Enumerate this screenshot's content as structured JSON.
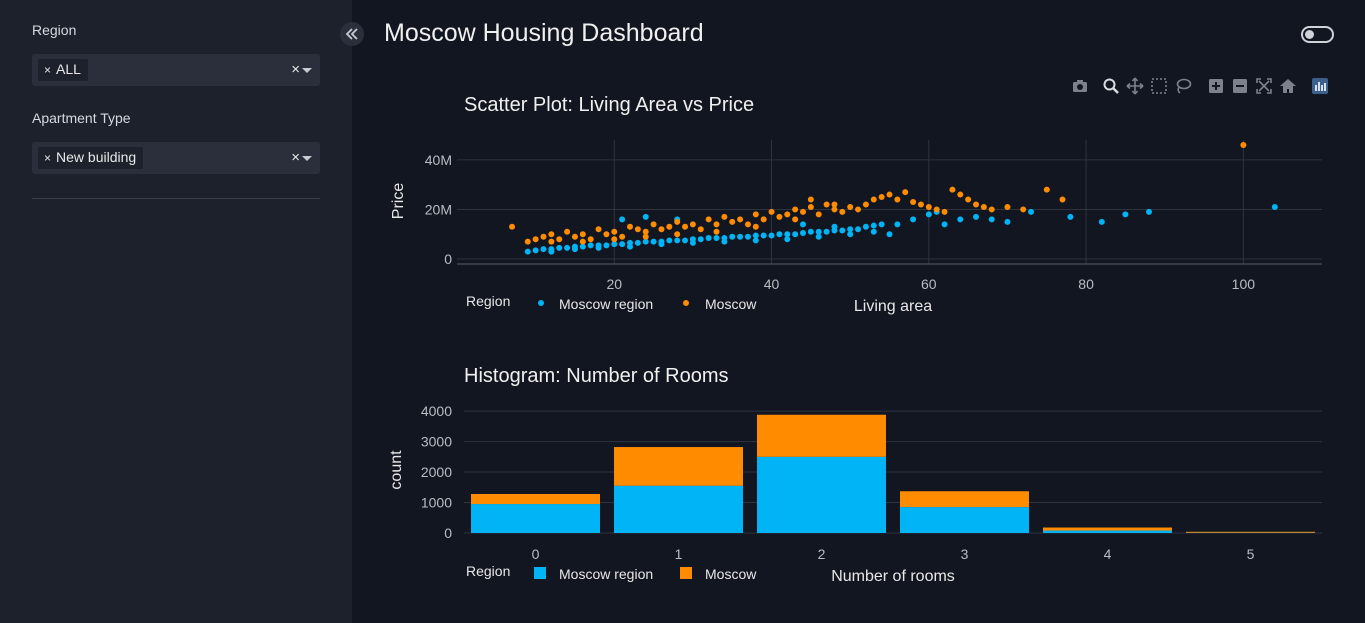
{
  "app": {
    "title": "Moscow Housing Dashboard"
  },
  "sidebar": {
    "filters": [
      {
        "label": "Region",
        "chips": [
          "ALL"
        ]
      },
      {
        "label": "Apartment Type",
        "chips": [
          "New building"
        ]
      }
    ],
    "chip_remove_glyph": "×",
    "clear_glyph": "×"
  },
  "modebar": {
    "buttons": [
      "camera-icon",
      "zoom-icon",
      "pan-icon",
      "box-select-icon",
      "lasso-select-icon",
      "zoom-in-icon",
      "zoom-out-icon",
      "autoscale-icon",
      "reset-axes-icon",
      "plotly-logo-icon"
    ]
  },
  "colors": {
    "moscow_region": "#00b4f5",
    "moscow": "#ff8c00",
    "grid": "#2e3340",
    "axis_text": "#b9bcc3",
    "bg": "#121620",
    "sidebar_bg": "#1c212c"
  },
  "chart_data": [
    {
      "type": "scatter",
      "title": "Scatter Plot: Living Area vs Price",
      "xlabel": "Living area",
      "ylabel": "Price",
      "xlim": [
        0,
        110
      ],
      "ylim": [
        -2,
        48
      ],
      "x_ticks": [
        20,
        40,
        60,
        80,
        100
      ],
      "y_ticks": [
        0,
        20,
        40
      ],
      "y_tick_labels": [
        "0",
        "20M",
        "40M"
      ],
      "legend": {
        "title": "Region",
        "placement": "bottom-left",
        "entries": [
          "Moscow region",
          "Moscow"
        ]
      },
      "series": [
        {
          "name": "Moscow region",
          "points": [
            [
              9,
              3
            ],
            [
              10,
              3.5
            ],
            [
              11,
              4
            ],
            [
              12,
              4
            ],
            [
              13,
              4.5
            ],
            [
              14,
              4.5
            ],
            [
              15,
              5
            ],
            [
              16,
              5
            ],
            [
              17,
              5.5
            ],
            [
              18,
              5.5
            ],
            [
              19,
              5.5
            ],
            [
              20,
              6
            ],
            [
              21,
              6
            ],
            [
              22,
              6.5
            ],
            [
              23,
              6.5
            ],
            [
              24,
              7
            ],
            [
              25,
              7
            ],
            [
              26,
              7
            ],
            [
              27,
              7.5
            ],
            [
              28,
              7.5
            ],
            [
              29,
              7.5
            ],
            [
              30,
              8
            ],
            [
              31,
              8
            ],
            [
              32,
              8.5
            ],
            [
              33,
              8.5
            ],
            [
              34,
              8.5
            ],
            [
              35,
              9
            ],
            [
              36,
              9
            ],
            [
              37,
              9
            ],
            [
              38,
              9.5
            ],
            [
              39,
              9.5
            ],
            [
              40,
              9.5
            ],
            [
              41,
              10
            ],
            [
              42,
              10
            ],
            [
              43,
              10
            ],
            [
              44,
              10.5
            ],
            [
              45,
              11
            ],
            [
              46,
              11
            ],
            [
              47,
              11
            ],
            [
              48,
              11.5
            ],
            [
              49,
              11.5
            ],
            [
              50,
              12
            ],
            [
              51,
              12
            ],
            [
              52,
              13
            ],
            [
              53,
              13.5
            ],
            [
              54,
              14
            ],
            [
              55,
              10
            ],
            [
              21,
              16
            ],
            [
              24,
              17
            ],
            [
              28,
              16
            ],
            [
              44,
              14
            ],
            [
              48,
              13
            ],
            [
              56,
              14
            ],
            [
              58,
              16
            ],
            [
              60,
              18
            ],
            [
              61,
              19
            ],
            [
              62,
              14
            ],
            [
              64,
              16
            ],
            [
              66,
              17
            ],
            [
              68,
              16
            ],
            [
              70,
              15
            ],
            [
              73,
              19
            ],
            [
              78,
              17
            ],
            [
              82,
              15
            ],
            [
              85,
              18
            ],
            [
              88,
              19
            ],
            [
              104,
              21
            ],
            [
              12,
              3
            ],
            [
              15,
              4
            ],
            [
              18,
              4.5
            ],
            [
              22,
              5
            ],
            [
              26,
              6
            ],
            [
              30,
              6.5
            ],
            [
              34,
              7
            ],
            [
              38,
              7.5
            ],
            [
              42,
              8
            ],
            [
              46,
              9
            ],
            [
              50,
              10
            ],
            [
              53,
              11
            ]
          ]
        },
        {
          "name": "Moscow",
          "points": [
            [
              7,
              13
            ],
            [
              9,
              7
            ],
            [
              10,
              8
            ],
            [
              11,
              9
            ],
            [
              12,
              10
            ],
            [
              13,
              8
            ],
            [
              14,
              11
            ],
            [
              15,
              9
            ],
            [
              16,
              10
            ],
            [
              17,
              8
            ],
            [
              18,
              12
            ],
            [
              19,
              10
            ],
            [
              20,
              11
            ],
            [
              21,
              9
            ],
            [
              22,
              13
            ],
            [
              23,
              12
            ],
            [
              24,
              11
            ],
            [
              25,
              14
            ],
            [
              26,
              12
            ],
            [
              27,
              13
            ],
            [
              28,
              15
            ],
            [
              29,
              13
            ],
            [
              30,
              14
            ],
            [
              31,
              12
            ],
            [
              32,
              16
            ],
            [
              33,
              14
            ],
            [
              34,
              17
            ],
            [
              35,
              15
            ],
            [
              36,
              16
            ],
            [
              37,
              14
            ],
            [
              38,
              18
            ],
            [
              39,
              16
            ],
            [
              40,
              19
            ],
            [
              41,
              17
            ],
            [
              42,
              18
            ],
            [
              43,
              20
            ],
            [
              44,
              19
            ],
            [
              45,
              21
            ],
            [
              46,
              18
            ],
            [
              47,
              22
            ],
            [
              48,
              20
            ],
            [
              49,
              19
            ],
            [
              50,
              21
            ],
            [
              51,
              20
            ],
            [
              52,
              22
            ],
            [
              53,
              24
            ],
            [
              54,
              25
            ],
            [
              55,
              26
            ],
            [
              56,
              24
            ],
            [
              57,
              27
            ],
            [
              58,
              23
            ],
            [
              59,
              22
            ],
            [
              60,
              21
            ],
            [
              61,
              20
            ],
            [
              62,
              19
            ],
            [
              63,
              28
            ],
            [
              64,
              26
            ],
            [
              65,
              24
            ],
            [
              66,
              22
            ],
            [
              67,
              21
            ],
            [
              68,
              20
            ],
            [
              70,
              21
            ],
            [
              72,
              20
            ],
            [
              75,
              28
            ],
            [
              77,
              24
            ],
            [
              100,
              46
            ],
            [
              45,
              24
            ],
            [
              48,
              22
            ],
            [
              43,
              16
            ],
            [
              38,
              13
            ],
            [
              33,
              11
            ],
            [
              28,
              10
            ],
            [
              24,
              9
            ],
            [
              20,
              8
            ],
            [
              16,
              7
            ],
            [
              12,
              7
            ]
          ]
        }
      ]
    },
    {
      "type": "bar",
      "stacked": true,
      "title": "Histogram: Number of Rooms",
      "xlabel": "Number of rooms",
      "ylabel": "count",
      "categories": [
        "0",
        "1",
        "2",
        "3",
        "4",
        "5"
      ],
      "ylim": [
        0,
        4200
      ],
      "y_ticks": [
        0,
        1000,
        2000,
        3000,
        4000
      ],
      "legend": {
        "title": "Region",
        "placement": "bottom-left",
        "entries": [
          "Moscow region",
          "Moscow"
        ]
      },
      "series": [
        {
          "name": "Moscow region",
          "values": [
            950,
            1550,
            2500,
            850,
            80,
            10
          ]
        },
        {
          "name": "Moscow",
          "values": [
            330,
            1270,
            1380,
            520,
            100,
            30
          ]
        }
      ]
    }
  ]
}
